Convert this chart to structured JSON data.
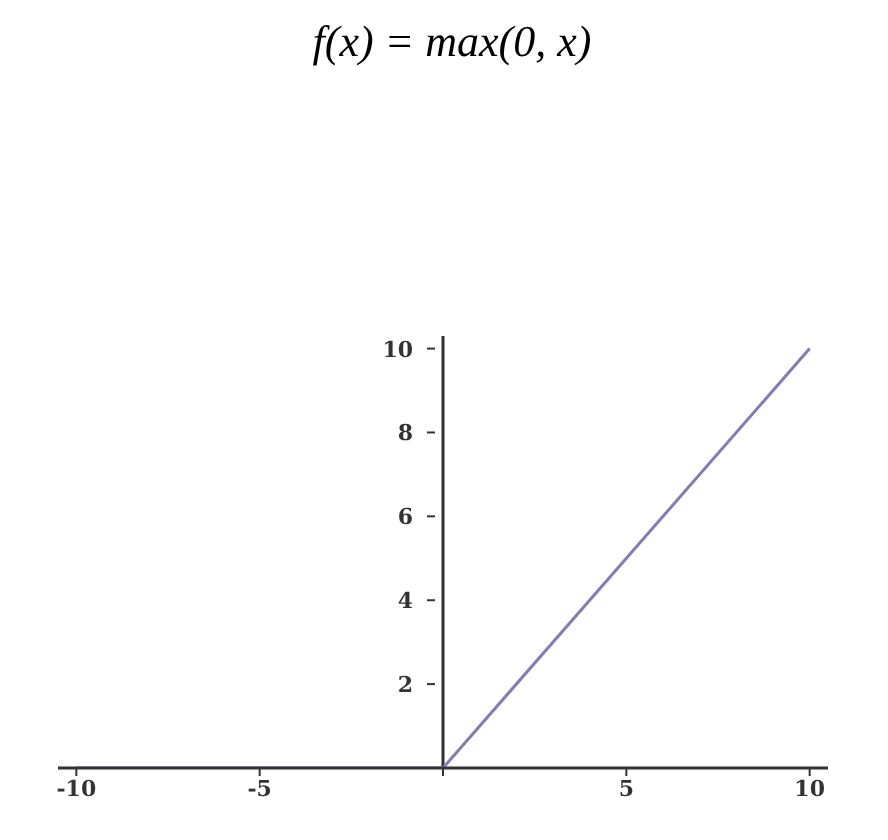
{
  "chart_data": {
    "type": "line",
    "title": "f(x) = max(0, x)",
    "x": [
      -10,
      0,
      10
    ],
    "series": [
      {
        "color": "#7f7fb5",
        "values": [
          0,
          0,
          10
        ]
      }
    ],
    "xlim": [
      -10.5,
      10.5
    ],
    "xticks": [
      -10,
      -5,
      {
        "value": 0,
        "label": null
      },
      5,
      10
    ],
    "ylim": [
      0,
      10.3
    ],
    "yticks": [
      {
        "value": 0,
        "label": null
      },
      2,
      4,
      6,
      8,
      10
    ],
    "marker": "none",
    "line_style": "solid"
  }
}
